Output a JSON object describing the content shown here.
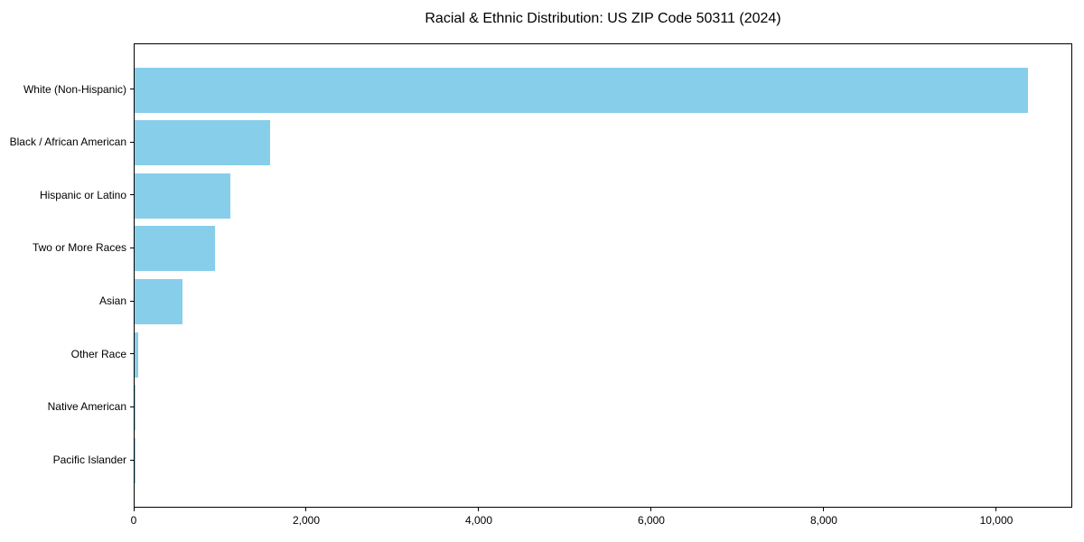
{
  "chart_data": {
    "type": "bar",
    "orientation": "horizontal",
    "title": "Racial & Ethnic Distribution: US ZIP Code 50311 (2024)",
    "categories": [
      "White (Non-Hispanic)",
      "Black / African American",
      "Hispanic or Latino",
      "Two or More Races",
      "Asian",
      "Other Race",
      "Native American",
      "Pacific Islander"
    ],
    "values": [
      10360,
      1575,
      1110,
      930,
      555,
      40,
      15,
      3
    ],
    "xlabel": "",
    "ylabel": "",
    "xlim": [
      0,
      10880
    ],
    "xticks": {
      "values": [
        0,
        2000,
        4000,
        6000,
        8000,
        10000
      ],
      "labels": [
        "0",
        "2,000",
        "4,000",
        "6,000",
        "8,000",
        "10,000"
      ]
    },
    "grid": false,
    "legend": null,
    "bar_color": "#87CEEB",
    "background_color": "#FFFFFF",
    "axis_color": "#000000",
    "text_color": "#000000"
  }
}
